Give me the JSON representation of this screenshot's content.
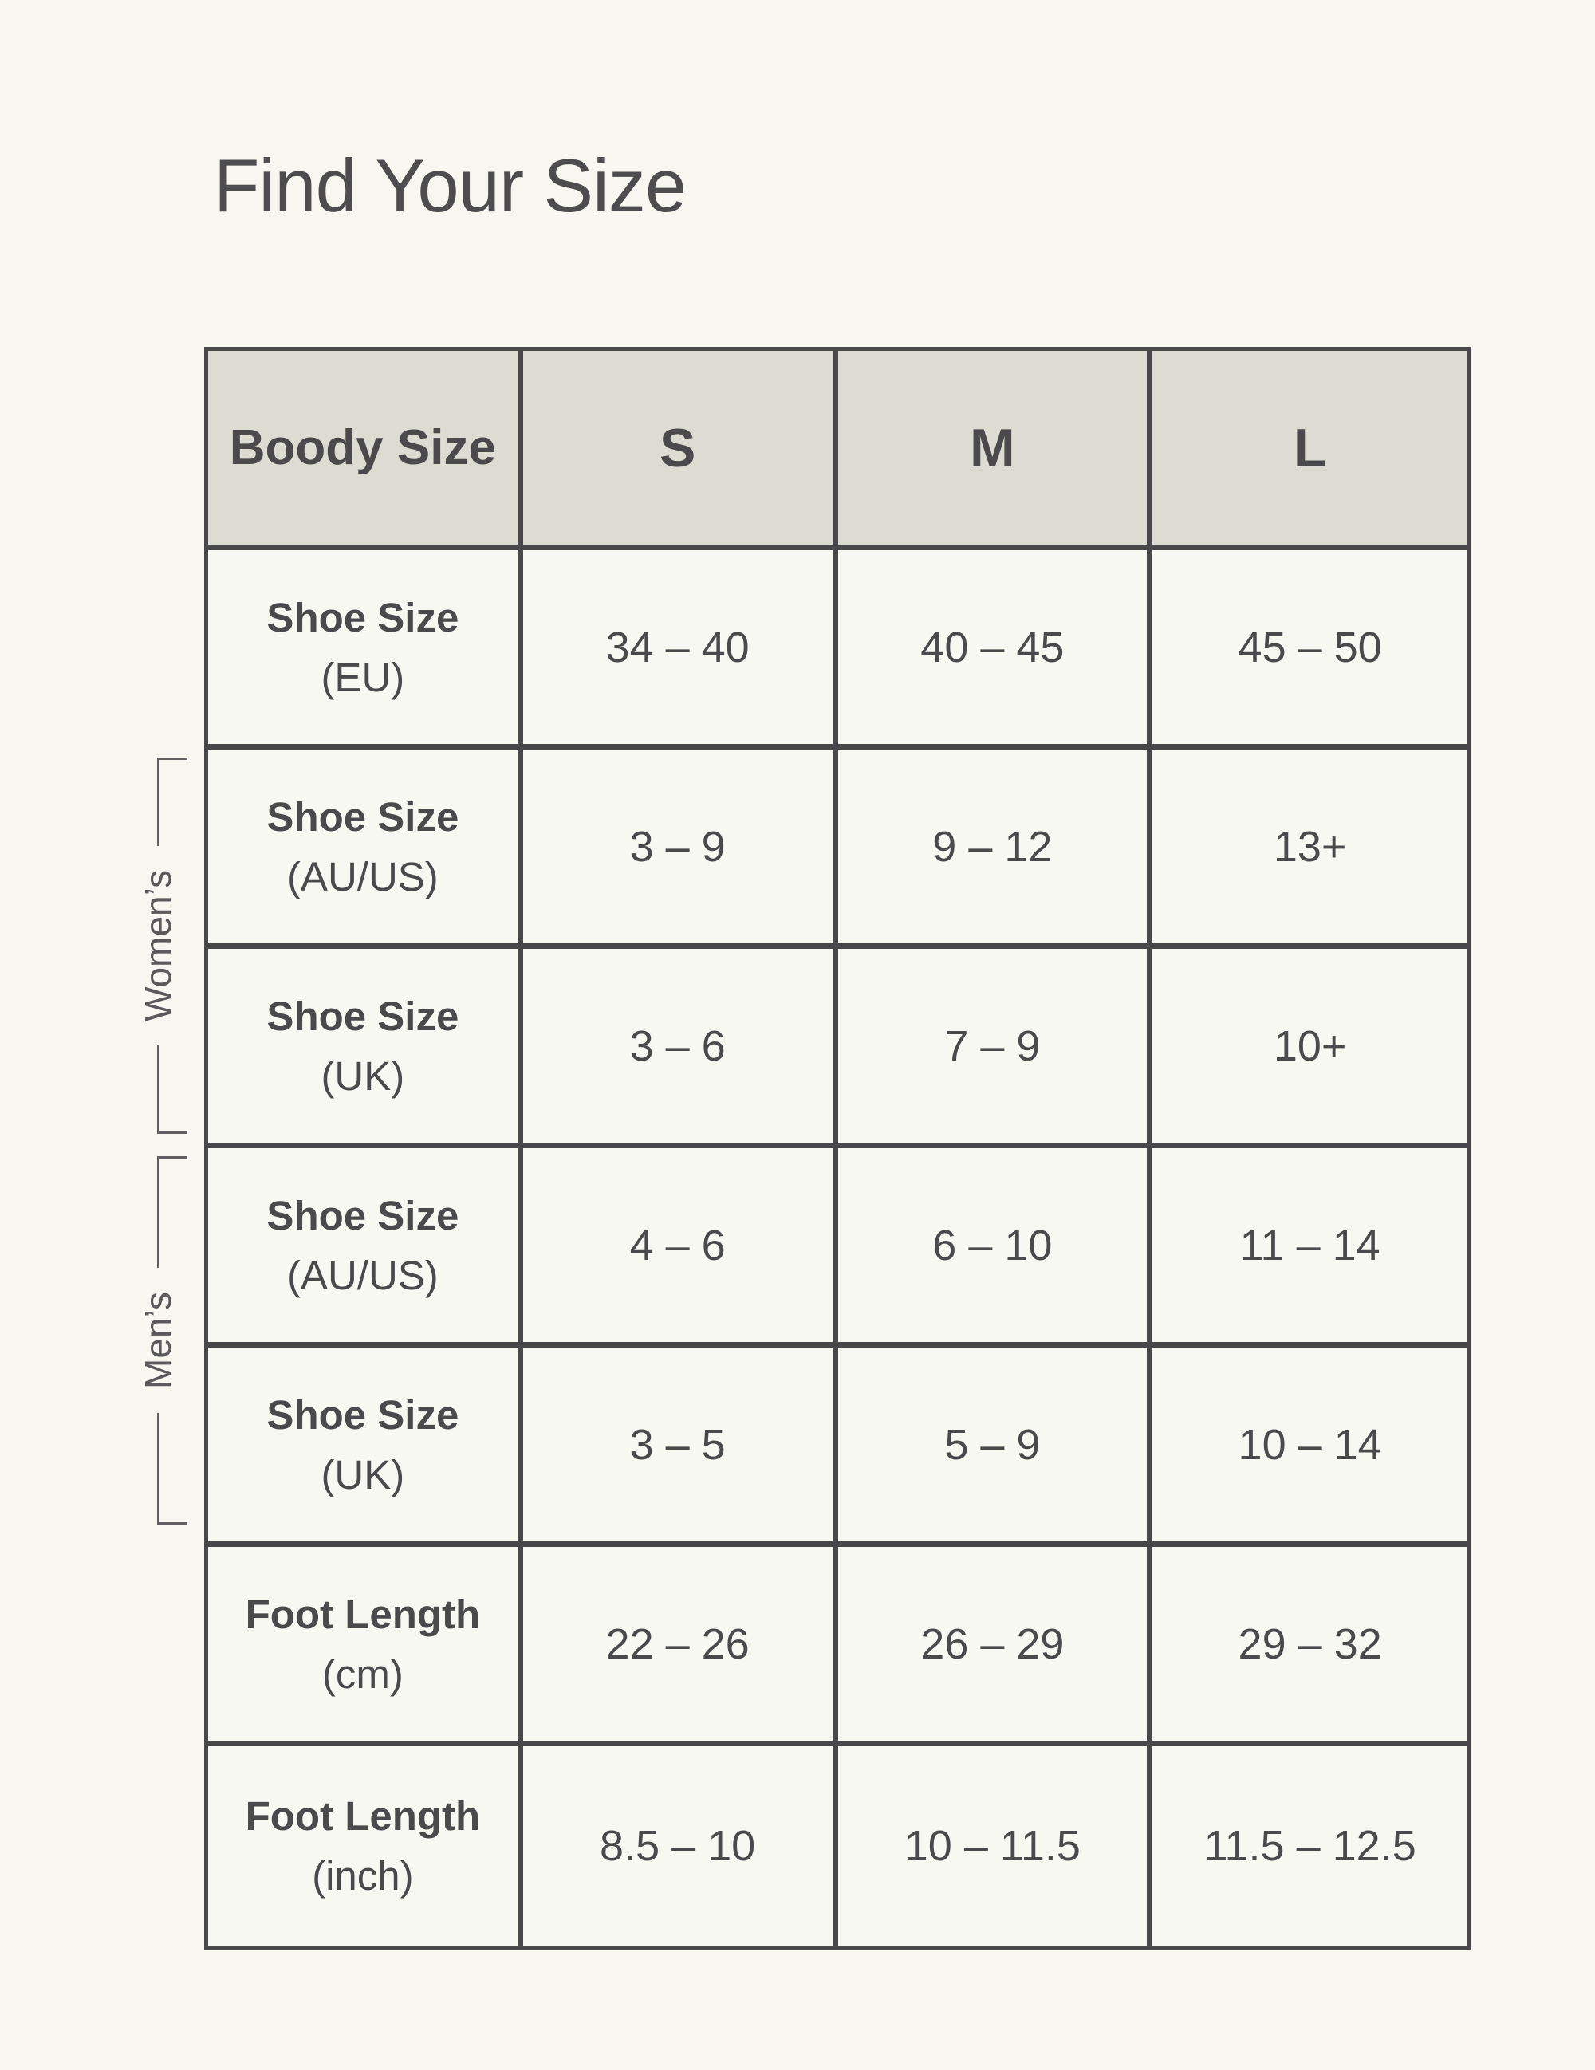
{
  "page": {
    "title": "Find Your Size"
  },
  "colors": {
    "page_bg": "#f7f6f0",
    "header_bg": "#dcdcd3",
    "cell_bg": "#f8f8f3",
    "border": "#48484a",
    "text": "#4a4a4c",
    "side_label": "#5a5a5c"
  },
  "side_groups": {
    "womens": "Women’s",
    "mens": "Men’s"
  },
  "table": {
    "header": {
      "label": "Boody Size",
      "s": "S",
      "m": "M",
      "l": "L"
    },
    "rows": [
      {
        "label": "Shoe Size",
        "sub": "(EU)",
        "s": "34 – 40",
        "m": "40 – 45",
        "l": "45 – 50"
      },
      {
        "label": "Shoe Size",
        "sub": "(AU/US)",
        "s": "3 – 9",
        "m": "9 – 12",
        "l": "13+"
      },
      {
        "label": "Shoe Size",
        "sub": "(UK)",
        "s": "3 – 6",
        "m": "7 – 9",
        "l": "10+"
      },
      {
        "label": "Shoe Size",
        "sub": "(AU/US)",
        "s": "4 – 6",
        "m": "6 – 10",
        "l": "11 – 14"
      },
      {
        "label": "Shoe Size",
        "sub": "(UK)",
        "s": "3 – 5",
        "m": "5 – 9",
        "l": "10 – 14"
      },
      {
        "label": "Foot Length",
        "sub": "(cm)",
        "s": "22 – 26",
        "m": "26 – 29",
        "l": "29 – 32"
      },
      {
        "label": "Foot Length",
        "sub": "(inch)",
        "s": "8.5 – 10",
        "m": "10 – 11.5",
        "l": "11.5 – 12.5"
      }
    ]
  },
  "chart_data": {
    "type": "table",
    "title": "Find Your Size",
    "columns": [
      "Boody Size",
      "S",
      "M",
      "L"
    ],
    "rows": [
      [
        "Shoe Size (EU)",
        "34 – 40",
        "40 – 45",
        "45 – 50"
      ],
      [
        "Shoe Size (AU/US)",
        "3 – 9",
        "9 – 12",
        "13+"
      ],
      [
        "Shoe Size (UK)",
        "3 – 6",
        "7 – 9",
        "10+"
      ],
      [
        "Shoe Size (AU/US)",
        "4 – 6",
        "6 – 10",
        "11 – 14"
      ],
      [
        "Shoe Size (UK)",
        "3 – 5",
        "5 – 9",
        "10 – 14"
      ],
      [
        "Foot Length (cm)",
        "22 – 26",
        "26 – 29",
        "29 – 32"
      ],
      [
        "Foot Length (inch)",
        "8.5 – 10",
        "10 – 11.5",
        "11.5 – 12.5"
      ]
    ],
    "row_groups": [
      {
        "label": "Women’s",
        "rows": [
          "Shoe Size (AU/US)",
          "Shoe Size (UK)"
        ],
        "row_indexes": [
          1,
          2
        ]
      },
      {
        "label": "Men’s",
        "rows": [
          "Shoe Size (AU/US)",
          "Shoe Size (UK)"
        ],
        "row_indexes": [
          3,
          4
        ]
      }
    ]
  }
}
